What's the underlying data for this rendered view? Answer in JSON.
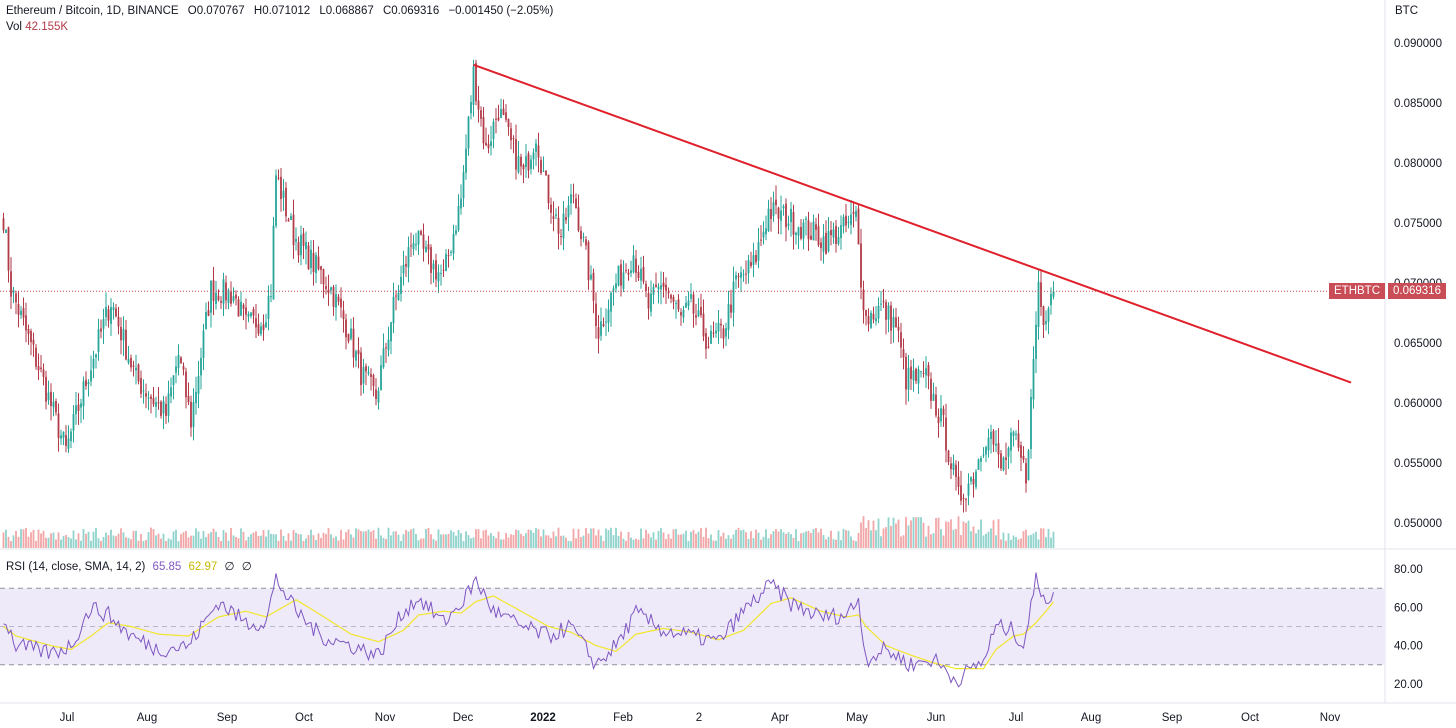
{
  "header": {
    "symbol": "Ethereum / Bitcoin, 1D, BINANCE",
    "open": "O0.070767",
    "high": "H0.071012",
    "low": "L0.068867",
    "close": "C0.069316",
    "change": "−0.001450 (−2.05%)",
    "vol_label": "Vol",
    "vol_value": "42.155K",
    "unit": "BTC"
  },
  "price_badge": {
    "ticker": "ETHBTC",
    "value": "0.069316"
  },
  "rsi": {
    "label": "RSI (14, close, SMA, 14, 2)",
    "value": "65.85",
    "sma": "62.97",
    "na1": "∅",
    "na2": "∅"
  },
  "colors": {
    "up": "#26a69a",
    "down": "#b23a48",
    "vol_up": "#8fd3cc",
    "vol_down": "#f2a6a8",
    "trendline": "#e0202a",
    "rsi_line": "#7e57c2",
    "rsi_sma": "#f2e62b",
    "rsi_band": "#efeaf9",
    "price_line": "#c94d57",
    "badge": "#c94d57"
  },
  "chart_data": {
    "type": "candlestick",
    "interval": "1D",
    "y_axis": {
      "ticks": [
        "0.090000",
        "0.085000",
        "0.080000",
        "0.075000",
        "0.070000",
        "0.065000",
        "0.060000",
        "0.055000",
        "0.050000"
      ],
      "min": 0.0479,
      "max": 0.0921
    },
    "x_axis": {
      "ticks": [
        "Jul",
        "Aug",
        "Sep",
        "Oct",
        "Nov",
        "Dec",
        "2022",
        "Feb",
        "2",
        "Apr",
        "May",
        "Jun",
        "Jul",
        "Aug",
        "Sep",
        "Oct",
        "Nov"
      ]
    },
    "last_close": 0.069316,
    "trendline": {
      "from": {
        "date": "2021-12-06",
        "price": 0.0882
      },
      "to": {
        "date": "2022-11-22",
        "price": 0.0617
      }
    },
    "anchors": [
      {
        "date": "2021-06-01",
        "price": 0.0755
      },
      {
        "date": "2021-06-04",
        "price": 0.0695
      },
      {
        "date": "2021-06-15",
        "price": 0.063
      },
      {
        "date": "2021-06-26",
        "price": 0.056
      },
      {
        "date": "2021-07-05",
        "price": 0.0625
      },
      {
        "date": "2021-07-14",
        "price": 0.0685
      },
      {
        "date": "2021-07-24",
        "price": 0.062
      },
      {
        "date": "2021-08-05",
        "price": 0.059
      },
      {
        "date": "2021-08-10",
        "price": 0.064
      },
      {
        "date": "2021-08-15",
        "price": 0.0585
      },
      {
        "date": "2021-08-23",
        "price": 0.0695
      },
      {
        "date": "2021-09-01",
        "price": 0.069
      },
      {
        "date": "2021-09-06",
        "price": 0.0665
      },
      {
        "date": "2021-09-13",
        "price": 0.067
      },
      {
        "date": "2021-09-16",
        "price": 0.0695
      },
      {
        "date": "2021-09-18",
        "price": 0.079
      },
      {
        "date": "2021-09-25",
        "price": 0.074
      },
      {
        "date": "2021-10-05",
        "price": 0.071
      },
      {
        "date": "2021-10-10",
        "price": 0.0695
      },
      {
        "date": "2021-10-17",
        "price": 0.066
      },
      {
        "date": "2021-10-22",
        "price": 0.0625
      },
      {
        "date": "2021-10-28",
        "price": 0.0605
      },
      {
        "date": "2021-11-04",
        "price": 0.068
      },
      {
        "date": "2021-11-12",
        "price": 0.074
      },
      {
        "date": "2021-11-19",
        "price": 0.0715
      },
      {
        "date": "2021-11-24",
        "price": 0.0705
      },
      {
        "date": "2021-12-01",
        "price": 0.077
      },
      {
        "date": "2021-12-06",
        "price": 0.0875
      },
      {
        "date": "2021-12-11",
        "price": 0.081
      },
      {
        "date": "2021-12-16",
        "price": 0.0845
      },
      {
        "date": "2021-12-21",
        "price": 0.0815
      },
      {
        "date": "2021-12-26",
        "price": 0.079
      },
      {
        "date": "2021-12-31",
        "price": 0.0825
      },
      {
        "date": "2022-01-04",
        "price": 0.078
      },
      {
        "date": "2022-01-10",
        "price": 0.074
      },
      {
        "date": "2022-01-15",
        "price": 0.0775
      },
      {
        "date": "2022-01-21",
        "price": 0.071
      },
      {
        "date": "2022-01-25",
        "price": 0.066
      },
      {
        "date": "2022-02-01",
        "price": 0.07
      },
      {
        "date": "2022-02-08",
        "price": 0.0725
      },
      {
        "date": "2022-02-14",
        "price": 0.068
      },
      {
        "date": "2022-02-20",
        "price": 0.07
      },
      {
        "date": "2022-02-27",
        "price": 0.067
      },
      {
        "date": "2022-03-03",
        "price": 0.068
      },
      {
        "date": "2022-03-10",
        "price": 0.065
      },
      {
        "date": "2022-03-16",
        "price": 0.066
      },
      {
        "date": "2022-03-21",
        "price": 0.07
      },
      {
        "date": "2022-03-28",
        "price": 0.0715
      },
      {
        "date": "2022-04-03",
        "price": 0.076
      },
      {
        "date": "2022-04-10",
        "price": 0.0755
      },
      {
        "date": "2022-04-18",
        "price": 0.0745
      },
      {
        "date": "2022-04-26",
        "price": 0.0735
      },
      {
        "date": "2022-05-03",
        "price": 0.0745
      },
      {
        "date": "2022-05-08",
        "price": 0.0755
      },
      {
        "date": "2022-05-10",
        "price": 0.0705
      },
      {
        "date": "2022-05-12",
        "price": 0.067
      },
      {
        "date": "2022-05-18",
        "price": 0.068
      },
      {
        "date": "2022-05-24",
        "price": 0.0665
      },
      {
        "date": "2022-05-28",
        "price": 0.062
      },
      {
        "date": "2022-06-05",
        "price": 0.062
      },
      {
        "date": "2022-06-12",
        "price": 0.058
      },
      {
        "date": "2022-06-18",
        "price": 0.052
      },
      {
        "date": "2022-06-24",
        "price": 0.054
      },
      {
        "date": "2022-06-30",
        "price": 0.058
      },
      {
        "date": "2022-07-05",
        "price": 0.0545
      },
      {
        "date": "2022-07-10",
        "price": 0.057
      },
      {
        "date": "2022-07-15",
        "price": 0.054
      },
      {
        "date": "2022-07-17",
        "price": 0.06
      },
      {
        "date": "2022-07-20",
        "price": 0.07
      },
      {
        "date": "2022-07-22",
        "price": 0.0665
      },
      {
        "date": "2022-07-25",
        "price": 0.07
      },
      {
        "date": "2022-07-26",
        "price": 0.0693
      }
    ],
    "volume": {
      "max_shown": 2.2
    },
    "rsi": {
      "ylim": [
        10,
        90
      ],
      "ticks": [
        80,
        60,
        40,
        20
      ],
      "band": [
        30,
        70
      ],
      "midline": 50,
      "anchors": [
        {
          "date": "2021-06-01",
          "rsi": 55,
          "sma": 50
        },
        {
          "date": "2021-06-06",
          "rsi": 40,
          "sma": 45
        },
        {
          "date": "2021-06-20",
          "rsi": 36,
          "sma": 40
        },
        {
          "date": "2021-06-28",
          "rsi": 40,
          "sma": 38
        },
        {
          "date": "2021-07-06",
          "rsi": 60,
          "sma": 45
        },
        {
          "date": "2021-07-13",
          "rsi": 56,
          "sma": 52
        },
        {
          "date": "2021-07-22",
          "rsi": 45,
          "sma": 50
        },
        {
          "date": "2021-08-02",
          "rsi": 38,
          "sma": 46
        },
        {
          "date": "2021-08-14",
          "rsi": 40,
          "sma": 45
        },
        {
          "date": "2021-08-26",
          "rsi": 63,
          "sma": 55
        },
        {
          "date": "2021-09-06",
          "rsi": 52,
          "sma": 58
        },
        {
          "date": "2021-09-14",
          "rsi": 52,
          "sma": 55
        },
        {
          "date": "2021-09-18",
          "rsi": 75,
          "sma": 58
        },
        {
          "date": "2021-09-26",
          "rsi": 58,
          "sma": 64
        },
        {
          "date": "2021-10-06",
          "rsi": 45,
          "sma": 56
        },
        {
          "date": "2021-10-18",
          "rsi": 40,
          "sma": 46
        },
        {
          "date": "2021-10-29",
          "rsi": 35,
          "sma": 42
        },
        {
          "date": "2021-11-08",
          "rsi": 58,
          "sma": 48
        },
        {
          "date": "2021-11-14",
          "rsi": 65,
          "sma": 56
        },
        {
          "date": "2021-11-24",
          "rsi": 52,
          "sma": 58
        },
        {
          "date": "2021-12-01",
          "rsi": 62,
          "sma": 57
        },
        {
          "date": "2021-12-07",
          "rsi": 74,
          "sma": 63
        },
        {
          "date": "2021-12-14",
          "rsi": 58,
          "sma": 66
        },
        {
          "date": "2021-12-25",
          "rsi": 50,
          "sma": 58
        },
        {
          "date": "2022-01-05",
          "rsi": 45,
          "sma": 50
        },
        {
          "date": "2022-01-14",
          "rsi": 50,
          "sma": 47
        },
        {
          "date": "2022-01-24",
          "rsi": 30,
          "sma": 40
        },
        {
          "date": "2022-02-01",
          "rsi": 40,
          "sma": 37
        },
        {
          "date": "2022-02-09",
          "rsi": 57,
          "sma": 46
        },
        {
          "date": "2022-02-20",
          "rsi": 48,
          "sma": 49
        },
        {
          "date": "2022-03-03",
          "rsi": 45,
          "sma": 47
        },
        {
          "date": "2022-03-14",
          "rsi": 42,
          "sma": 43
        },
        {
          "date": "2022-03-24",
          "rsi": 58,
          "sma": 48
        },
        {
          "date": "2022-04-04",
          "rsi": 72,
          "sma": 62
        },
        {
          "date": "2022-04-12",
          "rsi": 62,
          "sma": 65
        },
        {
          "date": "2022-04-24",
          "rsi": 55,
          "sma": 58
        },
        {
          "date": "2022-05-04",
          "rsi": 56,
          "sma": 55
        },
        {
          "date": "2022-05-09",
          "rsi": 64,
          "sma": 56
        },
        {
          "date": "2022-05-12",
          "rsi": 33,
          "sma": 50
        },
        {
          "date": "2022-05-20",
          "rsi": 38,
          "sma": 40
        },
        {
          "date": "2022-05-30",
          "rsi": 30,
          "sma": 35
        },
        {
          "date": "2022-06-08",
          "rsi": 33,
          "sma": 31
        },
        {
          "date": "2022-06-17",
          "rsi": 22,
          "sma": 28
        },
        {
          "date": "2022-06-28",
          "rsi": 32,
          "sma": 28
        },
        {
          "date": "2022-07-03",
          "rsi": 50,
          "sma": 38
        },
        {
          "date": "2022-07-10",
          "rsi": 48,
          "sma": 45
        },
        {
          "date": "2022-07-14",
          "rsi": 40,
          "sma": 46
        },
        {
          "date": "2022-07-19",
          "rsi": 74,
          "sma": 52
        },
        {
          "date": "2022-07-23",
          "rsi": 65,
          "sma": 58
        },
        {
          "date": "2022-07-26",
          "rsi": 65.85,
          "sma": 62.97
        }
      ]
    }
  }
}
